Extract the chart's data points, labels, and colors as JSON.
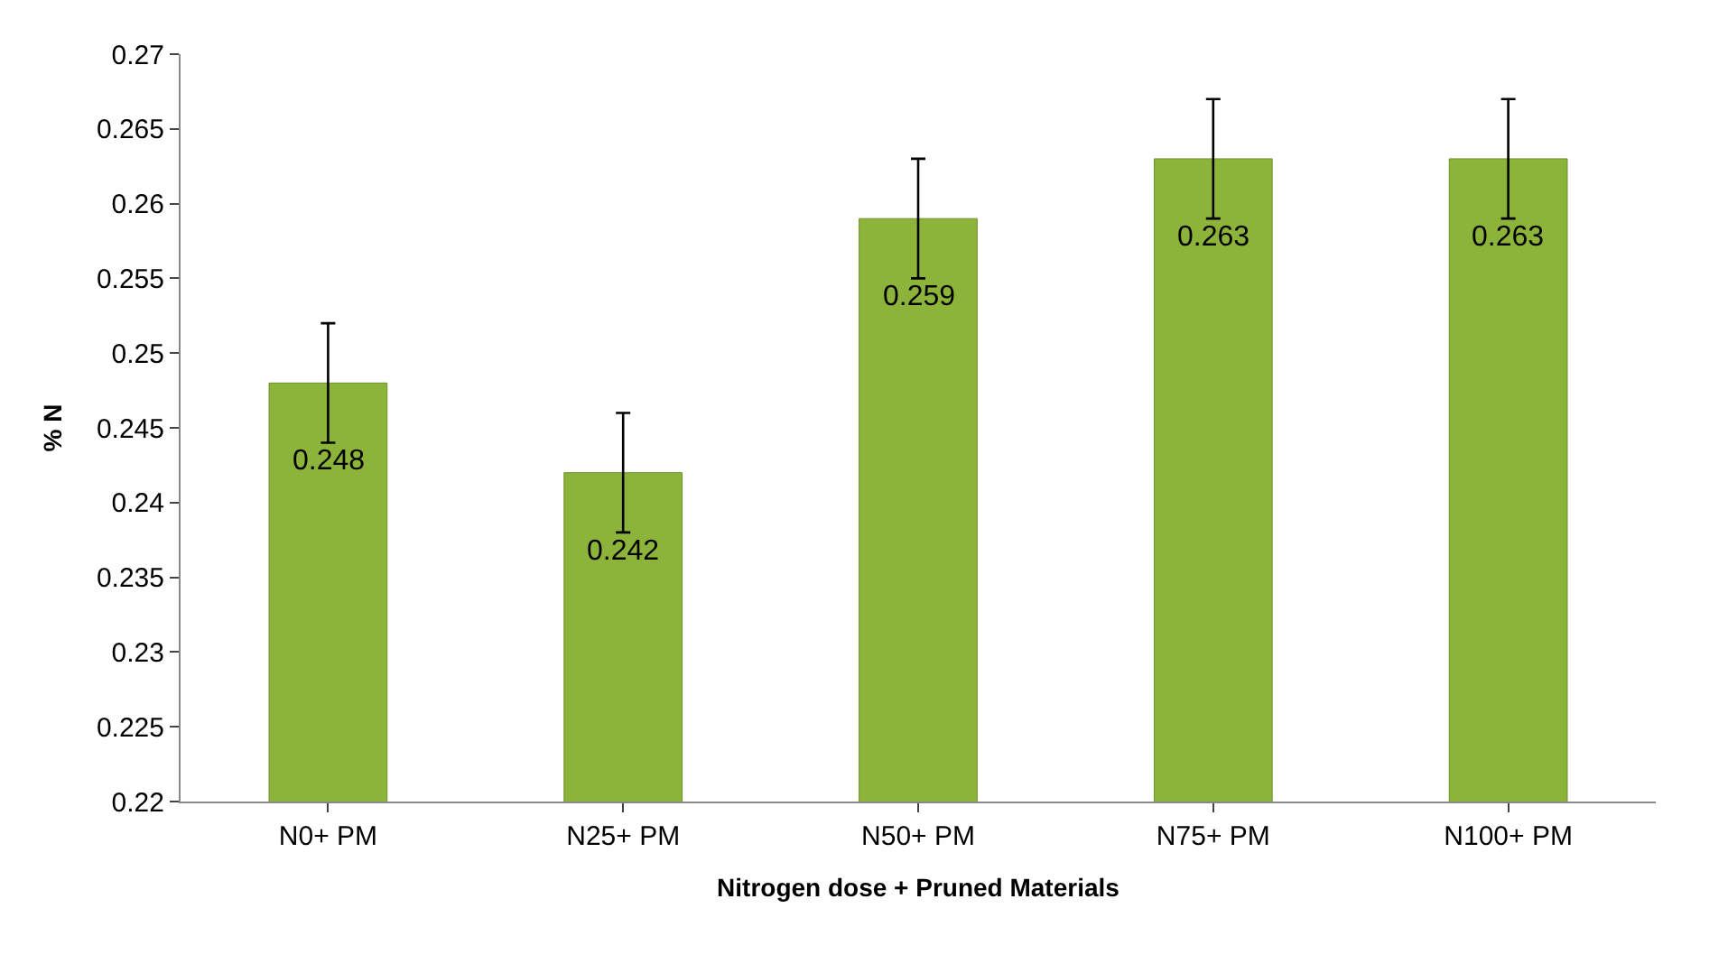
{
  "chart_data": {
    "type": "bar",
    "xlabel": "Nitrogen dose + Pruned Materials",
    "ylabel": "% N",
    "categories": [
      "N0+ PM",
      "N25+ PM",
      "N50+ PM",
      "N75+ PM",
      "N100+ PM"
    ],
    "values": [
      0.248,
      0.242,
      0.259,
      0.263,
      0.263
    ],
    "errors": [
      0.004,
      0.004,
      0.004,
      0.004,
      0.004
    ],
    "color": "#8db43a",
    "ylim": [
      0.22,
      0.27
    ],
    "yticks": [
      0.22,
      0.225,
      0.23,
      0.235,
      0.24,
      0.245,
      0.25,
      0.255,
      0.26,
      0.265,
      0.27
    ],
    "data_labels": true,
    "grid": false
  }
}
